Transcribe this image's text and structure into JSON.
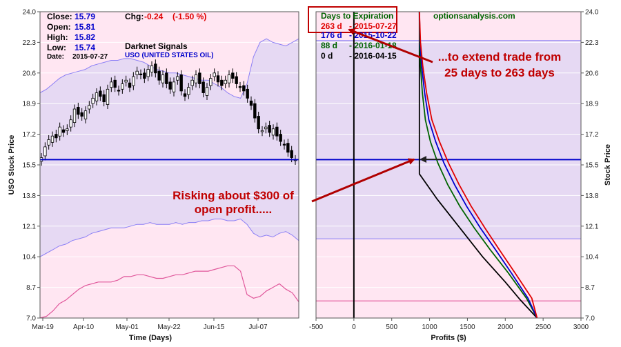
{
  "chart_data": [
    {
      "type": "candlestick",
      "xlabel": "Time (Days)",
      "ylabel": "USO Stock Price",
      "ylim": [
        7.0,
        24.0
      ],
      "yticks": [
        "24.0",
        "22.3",
        "20.6",
        "18.9",
        "17.2",
        "15.5",
        "13.8",
        "12.1",
        "10.4",
        "8.7",
        "7.0"
      ],
      "xticks": [
        "Mar-19",
        "Apr-10",
        "May-01",
        "May-22",
        "Jun-15",
        "Jul-07"
      ],
      "info": {
        "close_label": "Close:",
        "close_value": "15.79",
        "open_label": "Open:",
        "open_value": "15.81",
        "high_label": "High:",
        "high_value": "15.82",
        "low_label": "Low:",
        "low_value": "15.74",
        "date_label": "Date:",
        "date_value": "2015-07-27",
        "chg_label": "Chg:",
        "chg_value": "-0.24",
        "chg_pct": "(-1.50 %)",
        "signals": "Darknet Signals",
        "ticker": "USO (UNITED STATES OIL)"
      },
      "current_price": 15.79,
      "closes": [
        15.9,
        16.5,
        16.9,
        17.1,
        17.0,
        17.6,
        17.3,
        17.5,
        18.0,
        18.6,
        18.3,
        18.2,
        18.5,
        18.8,
        19.2,
        19.5,
        19.3,
        19.0,
        19.7,
        20.1,
        19.8,
        19.6,
        20.0,
        20.2,
        19.8,
        20.4,
        20.7,
        20.5,
        20.3,
        20.8,
        21.0,
        20.6,
        20.2,
        20.5,
        20.0,
        19.7,
        20.1,
        20.4,
        19.6,
        19.3,
        19.8,
        20.2,
        20.5,
        20.0,
        19.5,
        19.8,
        20.3,
        20.6,
        20.1,
        19.9,
        20.2,
        20.5,
        20.3,
        20.0,
        19.8,
        19.6,
        19.2,
        18.8,
        18.1,
        17.5,
        17.4,
        17.6,
        17.3,
        17.5,
        17.1,
        16.8,
        16.6,
        16.2,
        15.9,
        15.79
      ],
      "upper_band": [
        19.5,
        19.7,
        20.0,
        20.3,
        20.5,
        20.6,
        20.7,
        20.8,
        21.0,
        21.1,
        21.2,
        21.3,
        21.3,
        21.4,
        21.4,
        21.3,
        21.2,
        21.0,
        20.8,
        20.7,
        20.6,
        20.6,
        20.5,
        20.4,
        20.3,
        20.2,
        20.2,
        20.0,
        19.8,
        19.5,
        19.3,
        19.2,
        20.0,
        21.5,
        22.3,
        22.5,
        22.3,
        22.2,
        22.1,
        22.3,
        22.5
      ],
      "mid_band": [
        10.4,
        10.6,
        10.8,
        11.0,
        11.1,
        11.3,
        11.4,
        11.5,
        11.7,
        11.8,
        11.9,
        12.0,
        12.0,
        12.0,
        12.1,
        12.2,
        12.2,
        12.3,
        12.2,
        12.2,
        12.2,
        12.3,
        12.2,
        12.3,
        12.3,
        12.4,
        12.4,
        12.5,
        12.5,
        12.4,
        12.4,
        12.5,
        12.2,
        11.7,
        11.5,
        11.6,
        11.5,
        11.7,
        11.8,
        11.6,
        11.3
      ],
      "lower_band": [
        7.0,
        7.1,
        7.4,
        7.8,
        8.0,
        8.3,
        8.6,
        8.8,
        8.9,
        9.0,
        9.0,
        9.0,
        9.1,
        9.3,
        9.3,
        9.4,
        9.4,
        9.3,
        9.2,
        9.2,
        9.3,
        9.4,
        9.4,
        9.5,
        9.6,
        9.6,
        9.6,
        9.7,
        9.8,
        9.9,
        9.9,
        9.6,
        8.3,
        8.1,
        8.2,
        8.5,
        8.7,
        8.9,
        8.6,
        8.4,
        7.9
      ]
    },
    {
      "type": "line",
      "brand": "optionsanalysis.com",
      "xlabel": "Profits ($)",
      "ylabel": "Stock Price",
      "xlim": [
        -500,
        3000
      ],
      "ylim": [
        7.0,
        24.0
      ],
      "xticks": [
        "-500",
        "0",
        "500",
        "1000",
        "1500",
        "2000",
        "2500",
        "3000"
      ],
      "yticks": [
        "24.0",
        "22.3",
        "20.6",
        "18.9",
        "17.2",
        "15.5",
        "13.8",
        "12.1",
        "10.4",
        "8.7",
        "7.0"
      ],
      "legend_title": "Days to Expiration",
      "legend": [
        {
          "label": "263 d",
          "date": "- 2015-07-27",
          "color": "#e00000"
        },
        {
          "label": "176 d",
          "date": "- 2015-10-22",
          "color": "#0000cc"
        },
        {
          "label": "88 d",
          "date": "- 2016-01-18",
          "color": "#006400"
        },
        {
          "label": "0 d",
          "date": "- 2016-04-15",
          "color": "#000000"
        }
      ],
      "hlines": [
        22.4,
        15.79,
        11.4,
        7.95
      ],
      "series": [
        {
          "name": "263 d",
          "color": "#e00000",
          "profits": [
            865,
            880,
            910,
            960,
            1030,
            1130,
            1250,
            1390,
            1550,
            1730,
            1920,
            2130,
            2350,
            2420
          ],
          "prices": [
            24.0,
            22.3,
            21.0,
            19.5,
            18.0,
            16.8,
            15.6,
            14.4,
            13.2,
            12.0,
            10.8,
            9.5,
            8.1,
            7.0
          ]
        },
        {
          "name": "176 d",
          "color": "#0000cc",
          "profits": [
            865,
            875,
            895,
            935,
            990,
            1080,
            1190,
            1330,
            1490,
            1670,
            1870,
            2080,
            2300,
            2420
          ],
          "prices": [
            24.0,
            22.3,
            21.0,
            19.5,
            18.0,
            16.8,
            15.6,
            14.4,
            13.2,
            12.0,
            10.8,
            9.5,
            8.1,
            7.0
          ]
        },
        {
          "name": "88 d",
          "color": "#006400",
          "profits": [
            865,
            868,
            880,
            905,
            945,
            1010,
            1110,
            1240,
            1400,
            1590,
            1800,
            2040,
            2280,
            2420
          ],
          "prices": [
            24.0,
            22.3,
            21.0,
            19.5,
            18.0,
            16.8,
            15.6,
            14.4,
            13.2,
            12.0,
            10.8,
            9.5,
            8.1,
            7.0
          ]
        },
        {
          "name": "0 d",
          "color": "#000000",
          "profits": [
            865,
            865,
            865,
            865,
            865,
            865,
            865,
            1100,
            1400,
            1700,
            2000,
            2200,
            2420
          ],
          "prices": [
            24.0,
            22.0,
            20.0,
            18.0,
            16.0,
            15.5,
            15.0,
            13.6,
            12.0,
            10.4,
            9.0,
            8.0,
            7.0
          ]
        }
      ],
      "zero_line": 0
    }
  ],
  "annotations": {
    "risk_line1": "Risking about $300 of",
    "risk_line2": "open profit.....",
    "extend_line1": "...to extend trade from",
    "extend_line2": "25 days to 263 days"
  }
}
